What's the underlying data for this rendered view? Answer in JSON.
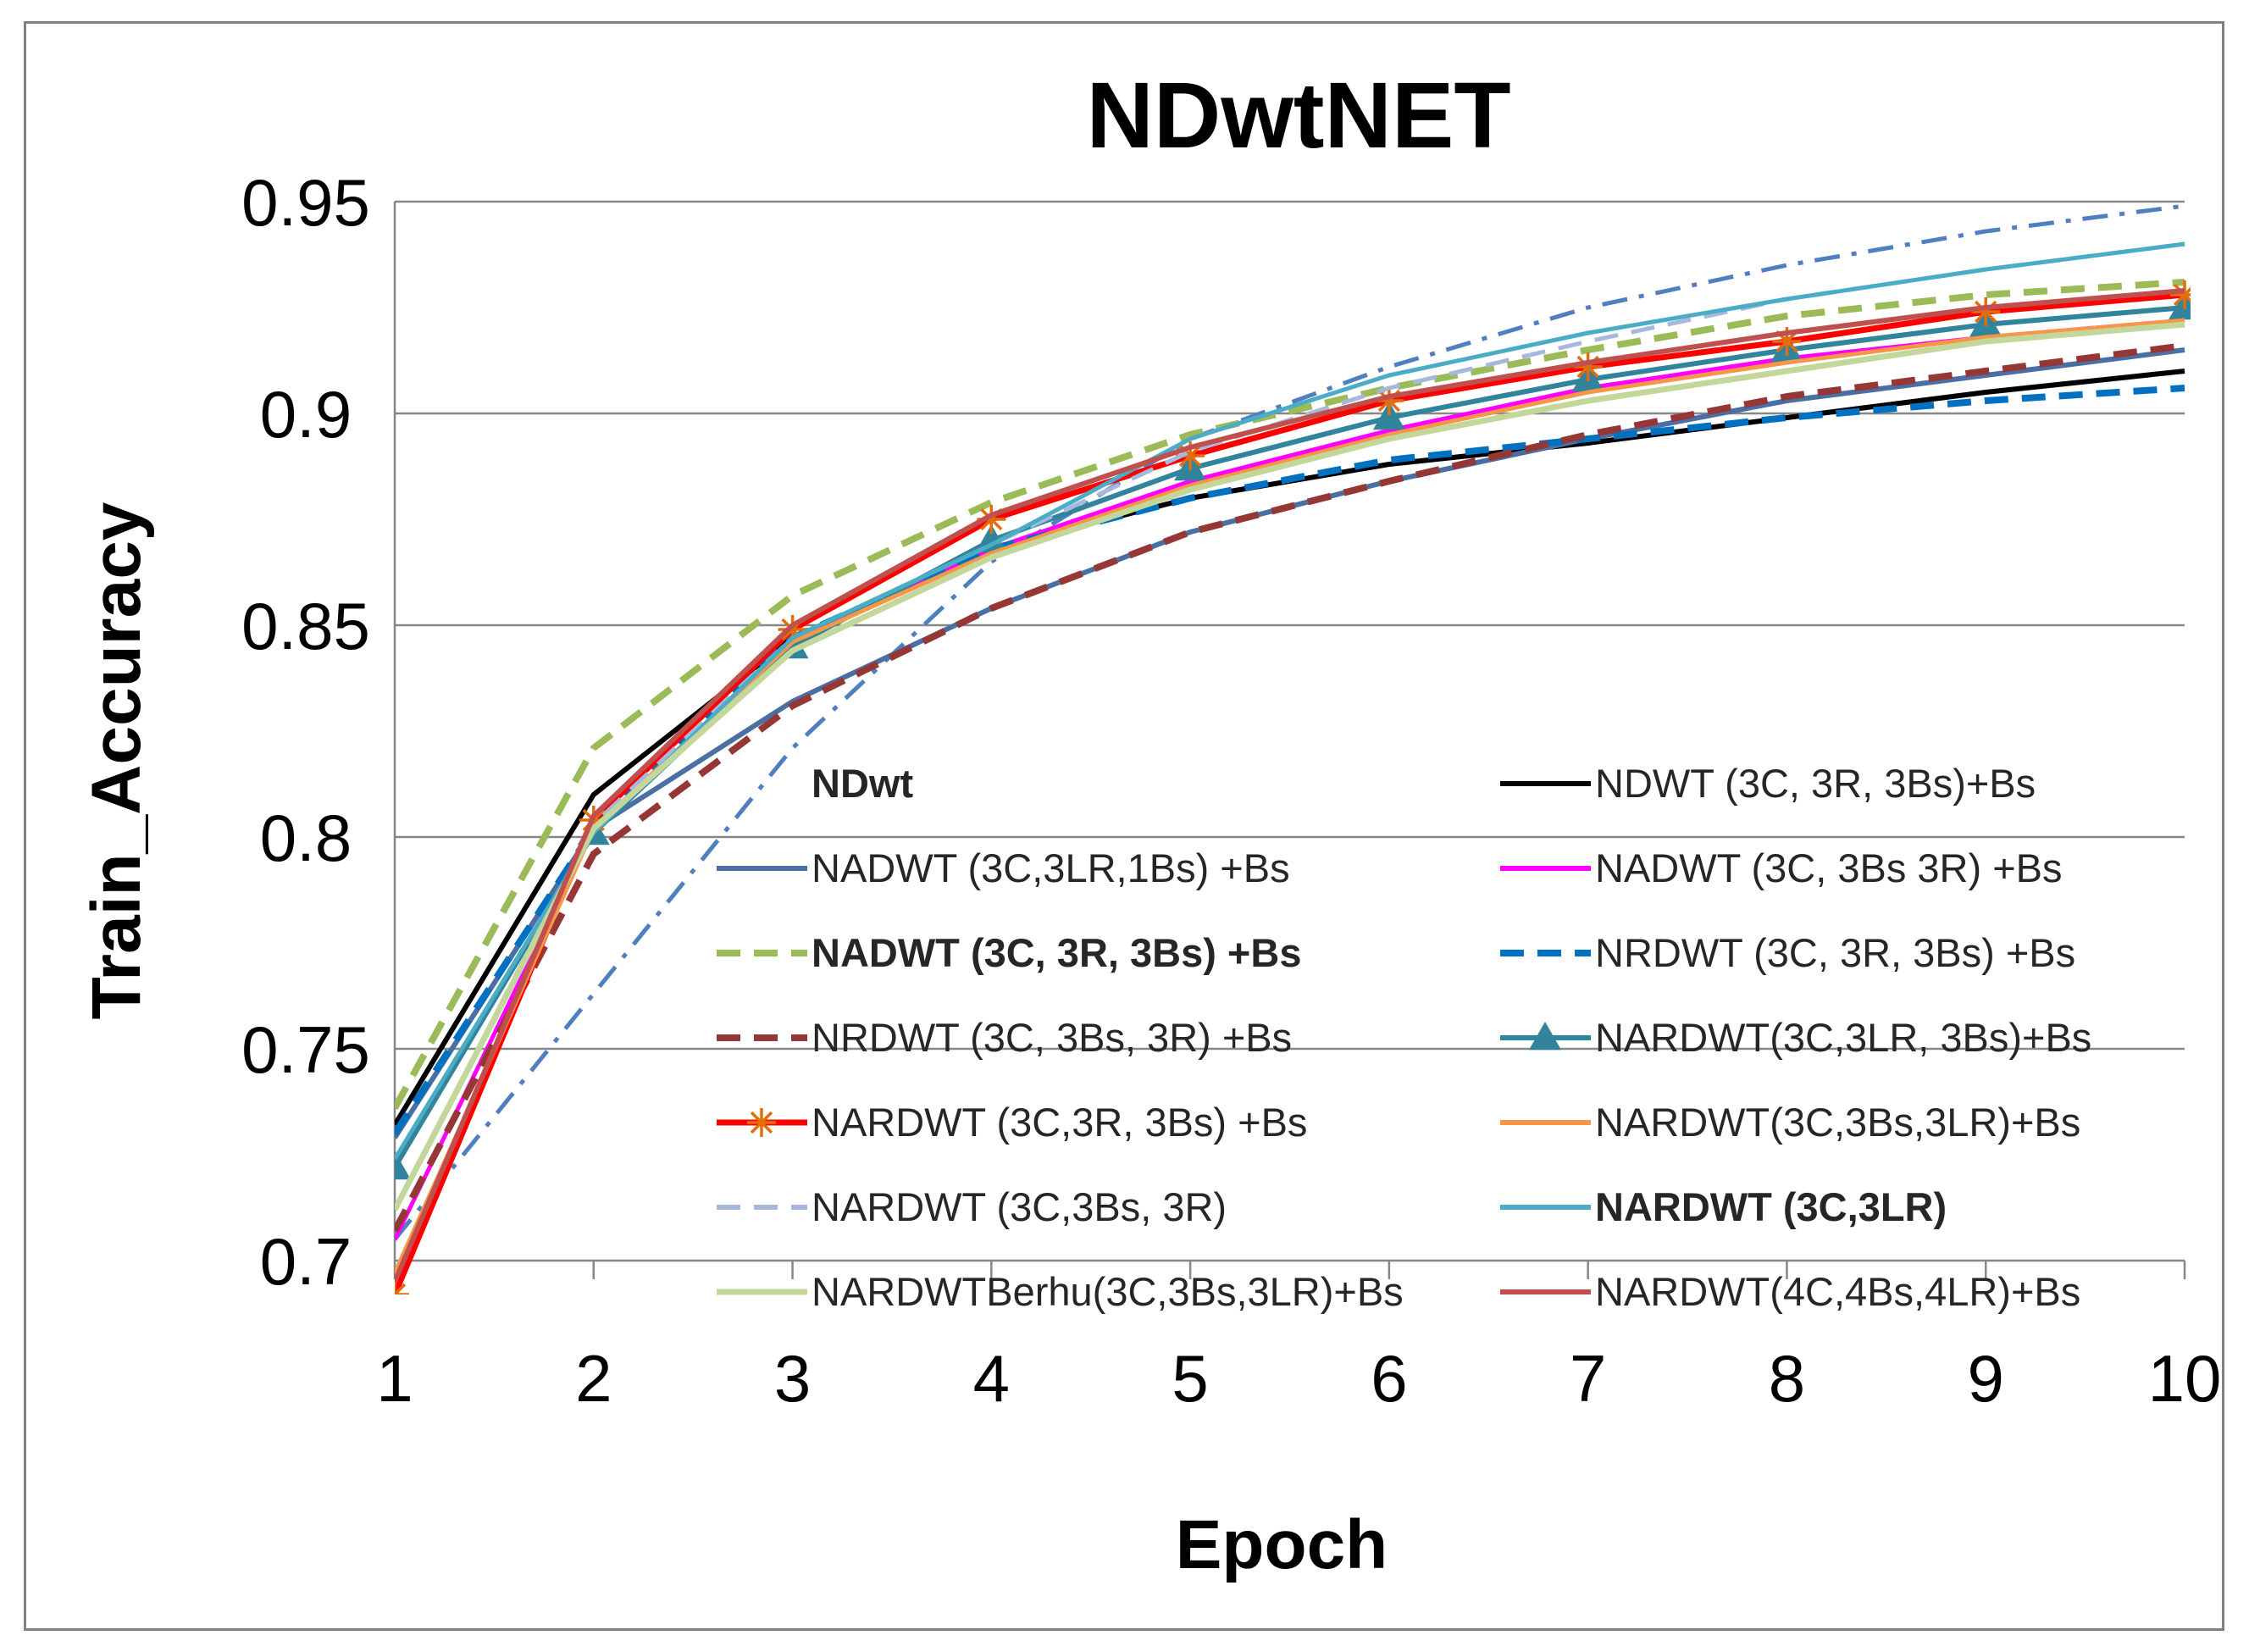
{
  "chart_data": {
    "type": "line",
    "title": "NDwtNET",
    "xlabel": "Epoch",
    "ylabel": "Train_Accuracy",
    "x": [
      1,
      2,
      3,
      4,
      5,
      6,
      7,
      8,
      9,
      10
    ],
    "xlim": [
      1,
      10
    ],
    "ylim": [
      0.7,
      0.95
    ],
    "yticks": [
      0.7,
      0.75,
      0.8,
      0.85,
      0.9,
      0.95
    ],
    "ytick_labels": [
      "0.7",
      "0.75",
      "0.8",
      "0.85",
      "0.9",
      "0.95"
    ],
    "xtick_labels": [
      "1",
      "2",
      "3",
      "4",
      "5",
      "6",
      "7",
      "8",
      "9",
      "10"
    ],
    "grid": true,
    "legend_position": "inside-lower-right",
    "series": [
      {
        "name": "NDwt",
        "legend_color": "#9c2a22",
        "legend_bold": true,
        "no_line_sample": true,
        "color": "#4f7fc0",
        "dash": "dashdot",
        "width": 5,
        "values": [
          0.705,
          0.763,
          0.821,
          0.865,
          0.894,
          0.911,
          0.925,
          0.935,
          0.943,
          0.949
        ]
      },
      {
        "name": "NDWT (3C, 3R, 3Bs)+Bs",
        "color": "#000000",
        "width": 6,
        "values": [
          0.732,
          0.81,
          0.847,
          0.868,
          0.88,
          0.888,
          0.893,
          0.899,
          0.905,
          0.91
        ]
      },
      {
        "name": "NADWT (3C,3LR,1Bs)  +Bs",
        "color": "#4a6fa5",
        "width": 6,
        "values": [
          0.729,
          0.802,
          0.832,
          0.854,
          0.872,
          0.884,
          0.894,
          0.903,
          0.909,
          0.915
        ]
      },
      {
        "name": "NADWT (3C, 3Bs 3R) +Bs",
        "color": "#ff00ff",
        "width": 5,
        "values": [
          0.705,
          0.802,
          0.846,
          0.868,
          0.884,
          0.896,
          0.906,
          0.913,
          0.918,
          0.922
        ]
      },
      {
        "name": "NADWT (3C, 3R, 3Bs) +Bs",
        "legend_color": "#c0242a",
        "legend_bold": true,
        "color": "#9bbb59",
        "dash": "dashed",
        "width": 8,
        "values": [
          0.736,
          0.821,
          0.857,
          0.879,
          0.895,
          0.906,
          0.915,
          0.923,
          0.928,
          0.931
        ]
      },
      {
        "name": "NRDWT (3C, 3R, 3Bs) +Bs",
        "color": "#0070c0",
        "dash": "dashed",
        "width": 8,
        "values": [
          0.73,
          0.802,
          0.847,
          0.868,
          0.88,
          0.889,
          0.894,
          0.899,
          0.903,
          0.906
        ]
      },
      {
        "name": "NRDWT (3C, 3Bs, 3R) +Bs",
        "color": "#953735",
        "dash": "dashed",
        "width": 8,
        "values": [
          0.707,
          0.796,
          0.831,
          0.854,
          0.872,
          0.884,
          0.895,
          0.904,
          0.91,
          0.916
        ]
      },
      {
        "name": "NARDWT(3C,3LR, 3Bs)+Bs",
        "color": "#31849b",
        "marker": "triangle",
        "width": 6,
        "values": [
          0.722,
          0.801,
          0.845,
          0.87,
          0.887,
          0.899,
          0.908,
          0.915,
          0.921,
          0.925
        ]
      },
      {
        "name": "NARDWT (3C,3R, 3Bs) +Bs",
        "color": "#ff0000",
        "marker": "star",
        "marker_color": "#e46c0a",
        "width": 7,
        "values": [
          0.692,
          0.804,
          0.849,
          0.875,
          0.89,
          0.903,
          0.911,
          0.917,
          0.924,
          0.928
        ]
      },
      {
        "name": "NARDWT(3C,3Bs,3LR)+Bs",
        "color": "#f79646",
        "width": 5,
        "values": [
          0.697,
          0.802,
          0.846,
          0.867,
          0.883,
          0.895,
          0.905,
          0.912,
          0.918,
          0.922
        ]
      },
      {
        "name": "NARDWT (3C,3Bs,  3R)",
        "color": "#a6b8dc",
        "dash": "dashed",
        "width": 5,
        "values": [
          0.712,
          0.803,
          0.847,
          0.869,
          0.891,
          0.906,
          0.917,
          0.927,
          0.934,
          0.94
        ]
      },
      {
        "name": "NARDWT (3C,3LR)",
        "legend_color": "#1f8fb6",
        "legend_bold": true,
        "color": "#4bacc6",
        "width": 5,
        "values": [
          0.724,
          0.801,
          0.847,
          0.869,
          0.894,
          0.909,
          0.919,
          0.927,
          0.934,
          0.94
        ]
      },
      {
        "name": "NARDWTBerhu(3C,3Bs,3LR)+Bs",
        "color": "#c4d79b",
        "width": 7,
        "values": [
          0.712,
          0.802,
          0.844,
          0.866,
          0.882,
          0.894,
          0.903,
          0.91,
          0.917,
          0.921
        ]
      },
      {
        "name": "NARDWT(4C,4Bs,4LR)+Bs",
        "color": "#c0504d",
        "width": 6,
        "values": [
          0.695,
          0.805,
          0.85,
          0.876,
          0.892,
          0.904,
          0.912,
          0.919,
          0.925,
          0.929
        ]
      }
    ]
  }
}
